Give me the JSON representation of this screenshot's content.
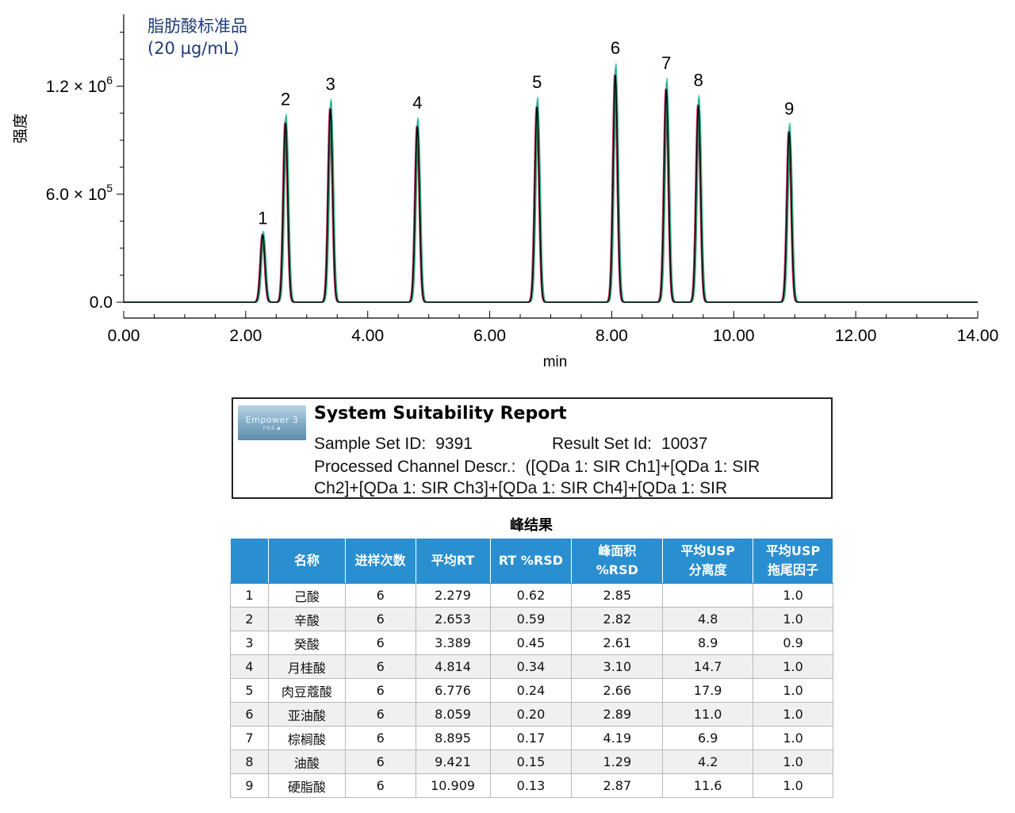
{
  "chart_data": {
    "type": "line",
    "title": "脂肪酸标准品",
    "subtitle": "(20 µg/mL)",
    "xlabel": "min",
    "ylabel": "强度",
    "xlim": [
      0,
      14
    ],
    "ylim": [
      0,
      1600000
    ],
    "x_ticks": [
      "0.00",
      "2.00",
      "4.00",
      "6.00",
      "8.00",
      "10.00",
      "12.00",
      "14.00"
    ],
    "y_ticks": [
      {
        "value": 0,
        "label": "0.0"
      },
      {
        "value": 600000,
        "label": "6.0 × 10",
        "exp": "5"
      },
      {
        "value": 1200000,
        "label": "1.2 × 10",
        "exp": "6"
      }
    ],
    "series_colors": [
      "#c2185b",
      "#7b1fa2",
      "#2e7d32",
      "#20c997",
      "#000000"
    ],
    "peaks": [
      {
        "label": "1",
        "rt": 2.279,
        "height": 380000
      },
      {
        "label": "2",
        "rt": 2.653,
        "height": 1010000
      },
      {
        "label": "3",
        "rt": 3.389,
        "height": 1090000
      },
      {
        "label": "4",
        "rt": 4.814,
        "height": 990000
      },
      {
        "label": "5",
        "rt": 6.776,
        "height": 1100000
      },
      {
        "label": "6",
        "rt": 8.059,
        "height": 1280000
      },
      {
        "label": "7",
        "rt": 8.895,
        "height": 1200000
      },
      {
        "label": "8",
        "rt": 9.421,
        "height": 1110000
      },
      {
        "label": "9",
        "rt": 10.909,
        "height": 960000
      }
    ]
  },
  "report": {
    "logo_text": "Empower 3",
    "logo_sub": "FR4 ▪",
    "title": "System Suitability Report",
    "sample_set_label": "Sample Set ID:",
    "sample_set_value": "9391",
    "result_set_label": "Result Set Id:",
    "result_set_value": "10037",
    "channel_label": "Processed Channel Descr.:",
    "channel_value_1": "([QDa 1: SIR Ch1]+[QDa 1: SIR",
    "channel_value_2": "Ch2]+[QDa 1: SIR Ch3]+[QDa 1: SIR Ch4]+[QDa 1: SIR"
  },
  "table": {
    "caption": "峰结果",
    "headers": [
      "",
      "名称",
      "进样次数",
      "平均RT",
      "RT %RSD",
      "峰面积\n%RSD",
      "平均USP\n分离度",
      "平均USP\n拖尾因子"
    ],
    "rows": [
      [
        "1",
        "己酸",
        "6",
        "2.279",
        "0.62",
        "2.85",
        "",
        "1.0"
      ],
      [
        "2",
        "辛酸",
        "6",
        "2.653",
        "0.59",
        "2.82",
        "4.8",
        "1.0"
      ],
      [
        "3",
        "癸酸",
        "6",
        "3.389",
        "0.45",
        "2.61",
        "8.9",
        "0.9"
      ],
      [
        "4",
        "月桂酸",
        "6",
        "4.814",
        "0.34",
        "3.10",
        "14.7",
        "1.0"
      ],
      [
        "5",
        "肉豆蔻酸",
        "6",
        "6.776",
        "0.24",
        "2.66",
        "17.9",
        "1.0"
      ],
      [
        "6",
        "亚油酸",
        "6",
        "8.059",
        "0.20",
        "2.89",
        "11.0",
        "1.0"
      ],
      [
        "7",
        "棕榈酸",
        "6",
        "8.895",
        "0.17",
        "4.19",
        "6.9",
        "1.0"
      ],
      [
        "8",
        "油酸",
        "6",
        "9.421",
        "0.15",
        "1.29",
        "4.2",
        "1.0"
      ],
      [
        "9",
        "硬脂酸",
        "6",
        "10.909",
        "0.13",
        "2.87",
        "11.6",
        "1.0"
      ]
    ]
  }
}
